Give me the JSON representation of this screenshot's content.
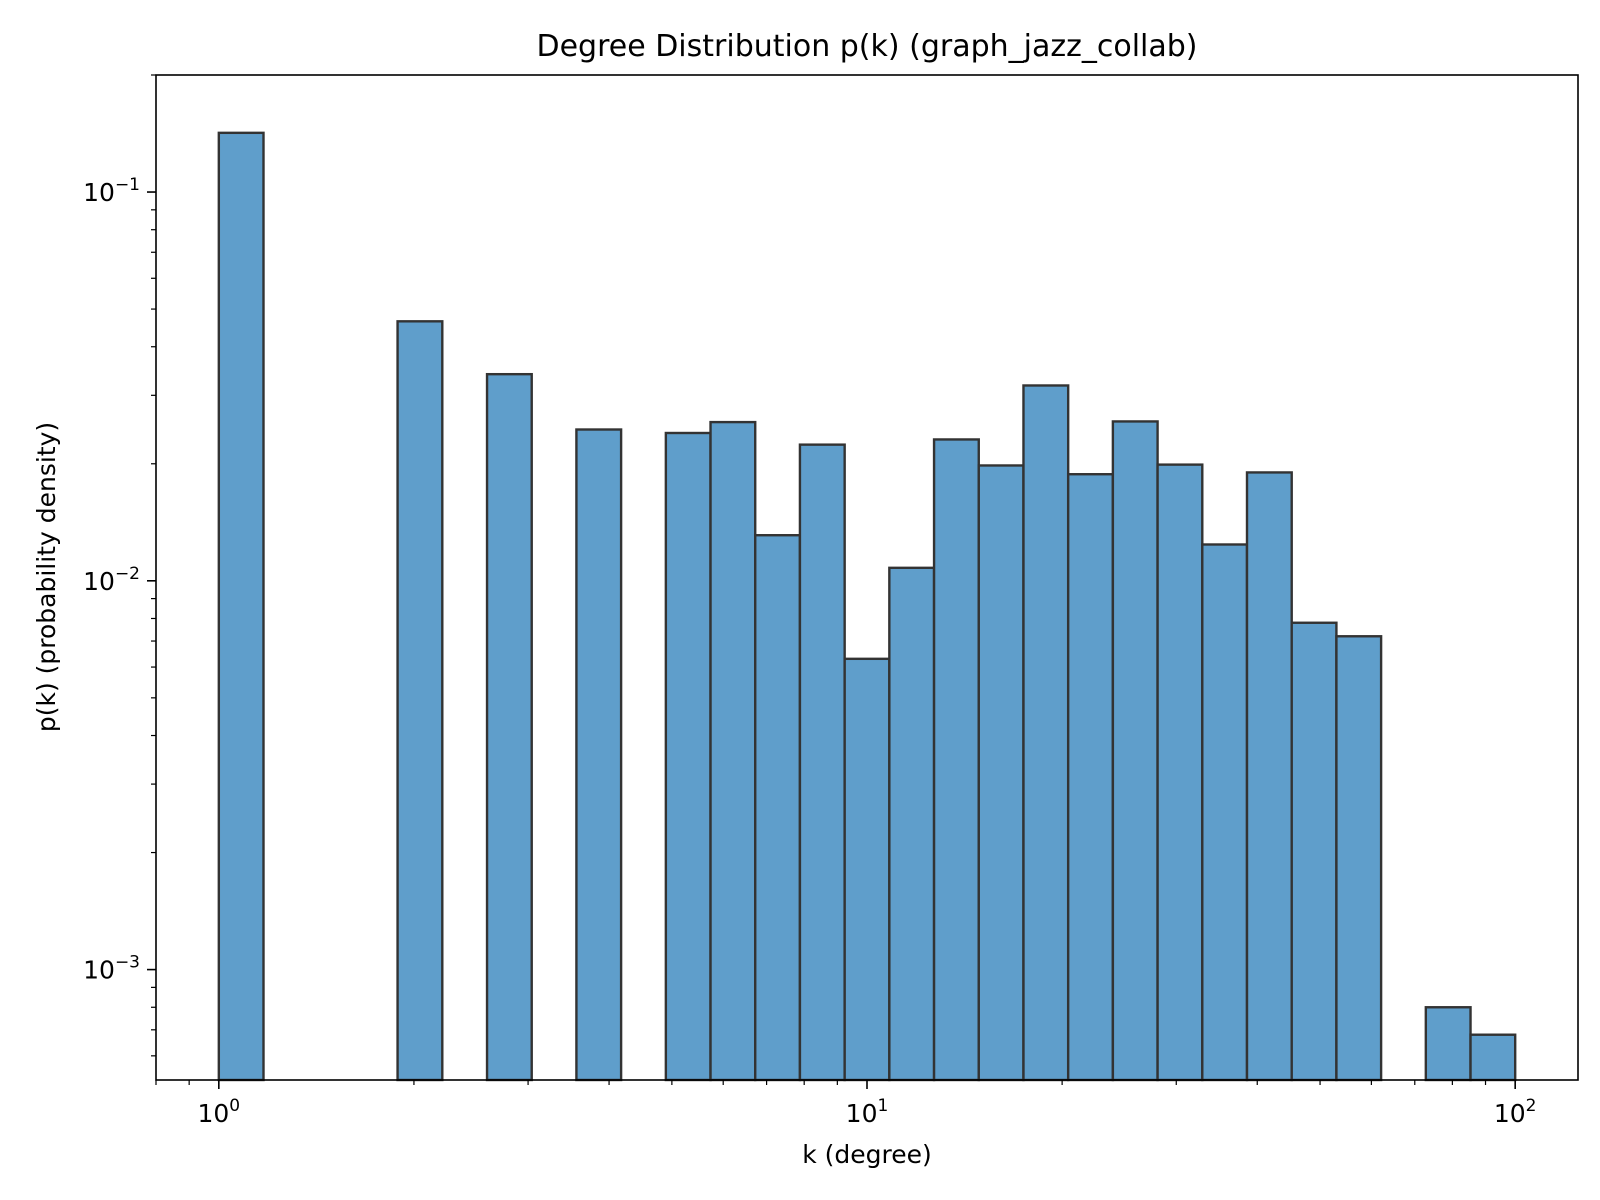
{
  "chart_data": {
    "type": "bar",
    "title": "Degree Distribution p(k) (graph_jazz_collab)",
    "xlabel": "k (degree)",
    "ylabel": "p(k) (probability density)",
    "x_scale": "log",
    "y_scale": "log",
    "xlim": [
      0.8,
      125
    ],
    "ylim": [
      0.00052,
      0.2
    ],
    "grid": false,
    "legend": "none",
    "bar_color": "#5f9ecb",
    "edge_color": "#333333",
    "x_ticks": [
      {
        "value": 1,
        "base": "10",
        "exp": "0"
      },
      {
        "value": 10,
        "base": "10",
        "exp": "1"
      },
      {
        "value": 100,
        "base": "10",
        "exp": "2"
      }
    ],
    "y_ticks": [
      {
        "value": 0.1,
        "base": "10",
        "exp": "−1"
      },
      {
        "value": 0.01,
        "base": "10",
        "exp": "−2"
      },
      {
        "value": 0.001,
        "base": "10",
        "exp": "−3"
      }
    ],
    "bins": [
      {
        "x0": 1.0,
        "x1": 1.172,
        "value": 0.142
      },
      {
        "x0": 1.172,
        "x1": 1.374,
        "value": 0
      },
      {
        "x0": 1.374,
        "x1": 1.61,
        "value": 0
      },
      {
        "x0": 1.61,
        "x1": 1.887,
        "value": 0
      },
      {
        "x0": 1.887,
        "x1": 2.212,
        "value": 0.0465
      },
      {
        "x0": 2.212,
        "x1": 2.593,
        "value": 0
      },
      {
        "x0": 2.593,
        "x1": 3.039,
        "value": 0.034
      },
      {
        "x0": 3.039,
        "x1": 3.562,
        "value": 0
      },
      {
        "x0": 3.562,
        "x1": 4.175,
        "value": 0.0245
      },
      {
        "x0": 4.175,
        "x1": 4.894,
        "value": 0
      },
      {
        "x0": 4.894,
        "x1": 5.736,
        "value": 0.024
      },
      {
        "x0": 5.736,
        "x1": 6.723,
        "value": 0.0256
      },
      {
        "x0": 6.723,
        "x1": 7.88,
        "value": 0.0131
      },
      {
        "x0": 7.88,
        "x1": 9.237,
        "value": 0.0224
      },
      {
        "x0": 9.237,
        "x1": 10.826,
        "value": 0.0063
      },
      {
        "x0": 10.826,
        "x1": 12.69,
        "value": 0.0108
      },
      {
        "x0": 12.69,
        "x1": 14.874,
        "value": 0.0231
      },
      {
        "x0": 14.874,
        "x1": 17.434,
        "value": 0.0198
      },
      {
        "x0": 17.434,
        "x1": 20.435,
        "value": 0.0318
      },
      {
        "x0": 20.435,
        "x1": 23.952,
        "value": 0.0188
      },
      {
        "x0": 23.952,
        "x1": 28.074,
        "value": 0.0257
      },
      {
        "x0": 28.074,
        "x1": 32.906,
        "value": 0.0199
      },
      {
        "x0": 32.906,
        "x1": 38.57,
        "value": 0.0124
      },
      {
        "x0": 38.57,
        "x1": 45.209,
        "value": 0.019
      },
      {
        "x0": 45.209,
        "x1": 52.99,
        "value": 0.0078
      },
      {
        "x0": 52.99,
        "x1": 62.11,
        "value": 0.0072
      },
      {
        "x0": 62.11,
        "x1": 72.8,
        "value": 0
      },
      {
        "x0": 72.8,
        "x1": 85.331,
        "value": 0.0008
      },
      {
        "x0": 85.331,
        "x1": 100.0,
        "value": 0.00068
      }
    ]
  }
}
